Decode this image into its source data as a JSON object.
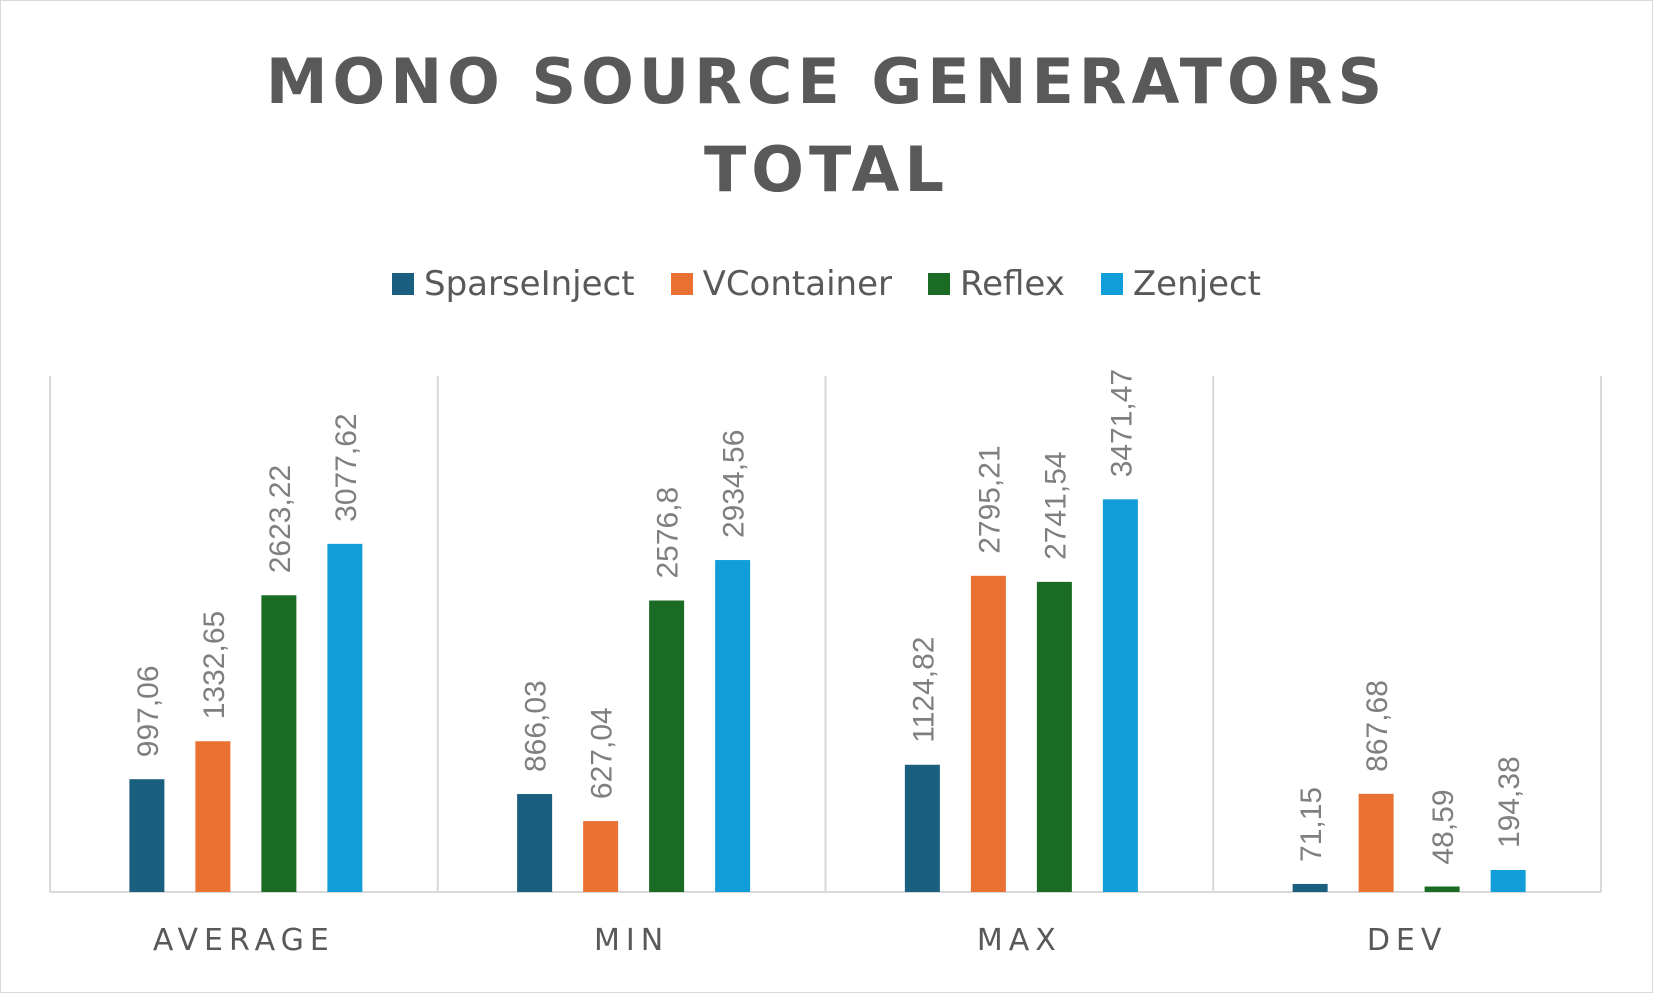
{
  "chart_data": {
    "type": "bar",
    "title": "MONO SOURCE GENERATORS TOTAL",
    "title_lines": [
      "MONO SOURCE GENERATORS",
      "TOTAL"
    ],
    "categories": [
      "AVERAGE",
      "MIN",
      "MAX",
      "DEV"
    ],
    "series": [
      {
        "name": "SparseInject",
        "color": "#1a5e80",
        "values": [
          997.06,
          866.03,
          1124.82,
          71.15
        ],
        "labels": [
          "997,06",
          "866,03",
          "1124,82",
          "71,15"
        ]
      },
      {
        "name": "VContainer",
        "color": "#e97132",
        "values": [
          1332.65,
          627.04,
          2795.21,
          867.68
        ],
        "labels": [
          "1332,65",
          "627,04",
          "2795,21",
          "867,68"
        ]
      },
      {
        "name": "Reflex",
        "color": "#1a6b24",
        "values": [
          2623.22,
          2576.8,
          2741.54,
          48.59
        ],
        "labels": [
          "2623,22",
          "2576,8",
          "2741,54",
          "48,59"
        ]
      },
      {
        "name": "Zenject",
        "color": "#119ed8",
        "values": [
          3077.62,
          2934.56,
          3471.47,
          194.38
        ],
        "labels": [
          "3077,62",
          "2934,56",
          "3471,47",
          "194,38"
        ]
      }
    ],
    "xlabel": "",
    "ylabel": "",
    "ylim": [
      0,
      4000
    ],
    "grid": "vertical category separators",
    "legend_position": "top"
  }
}
